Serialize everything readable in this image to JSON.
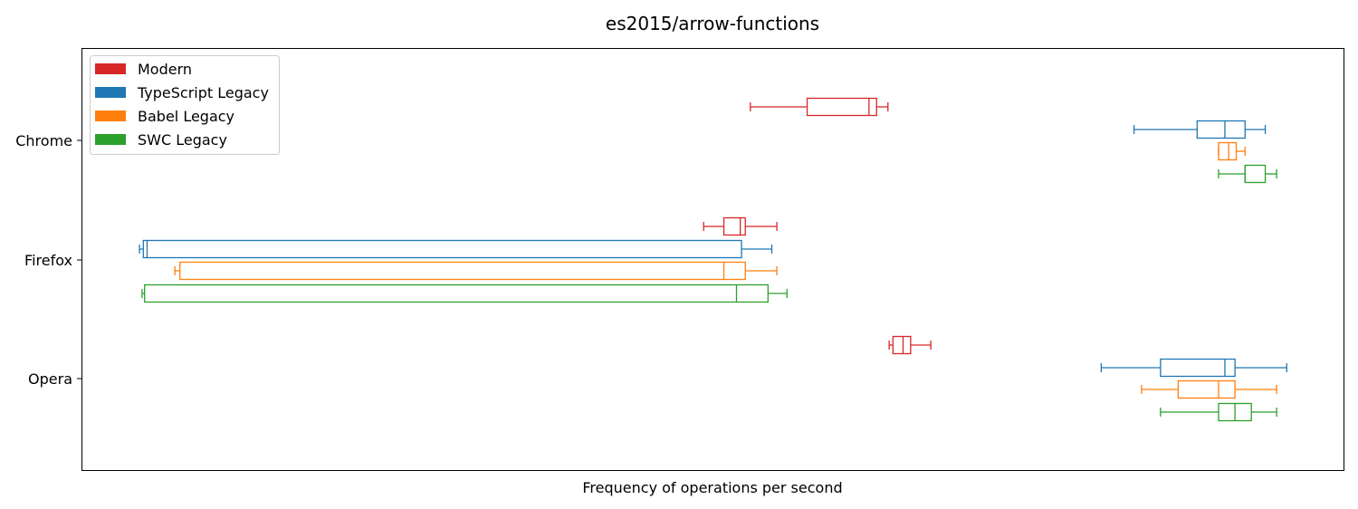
{
  "chart_data": {
    "type": "boxplot",
    "orientation": "horizontal",
    "title": "es2015/arrow-functions",
    "xlabel": "Frequency of operations per second",
    "ylabel": "",
    "x_ticks_visible": false,
    "xlim": [
      0,
      100
    ],
    "grid": false,
    "legend": {
      "placement": "top-left",
      "entries": [
        {
          "name": "Modern",
          "color": "#d62728"
        },
        {
          "name": "TypeScript Legacy",
          "color": "#1f77b4"
        },
        {
          "name": "Babel Legacy",
          "color": "#ff7f0e"
        },
        {
          "name": "SWC Legacy",
          "color": "#2ca02c"
        }
      ]
    },
    "categories": [
      "Chrome",
      "Firefox",
      "Opera"
    ],
    "series": [
      {
        "name": "Modern",
        "color": "#d62728",
        "boxes": [
          {
            "whisker_low": 53.0,
            "q1": 57.5,
            "median": 62.4,
            "q3": 63.0,
            "whisker_high": 63.9
          },
          {
            "whisker_low": 49.3,
            "q1": 50.9,
            "median": 52.2,
            "q3": 52.6,
            "whisker_high": 55.1
          },
          {
            "whisker_low": 64.0,
            "q1": 64.3,
            "median": 65.1,
            "q3": 65.7,
            "whisker_high": 67.3
          }
        ]
      },
      {
        "name": "TypeScript Legacy",
        "color": "#1f77b4",
        "boxes": [
          {
            "whisker_low": 83.4,
            "q1": 88.4,
            "median": 90.6,
            "q3": 92.2,
            "whisker_high": 93.8
          },
          {
            "whisker_low": 4.6,
            "q1": 4.9,
            "median": 5.2,
            "q3": 52.3,
            "whisker_high": 54.7
          },
          {
            "whisker_low": 80.8,
            "q1": 85.5,
            "median": 90.6,
            "q3": 91.4,
            "whisker_high": 95.5
          }
        ]
      },
      {
        "name": "Babel Legacy",
        "color": "#ff7f0e",
        "boxes": [
          {
            "whisker_low": 90.1,
            "q1": 90.1,
            "median": 90.9,
            "q3": 91.5,
            "whisker_high": 92.2
          },
          {
            "whisker_low": 7.4,
            "q1": 7.8,
            "median": 50.9,
            "q3": 52.6,
            "whisker_high": 55.1
          },
          {
            "whisker_low": 84.0,
            "q1": 86.9,
            "median": 90.1,
            "q3": 91.4,
            "whisker_high": 94.7
          }
        ]
      },
      {
        "name": "SWC Legacy",
        "color": "#2ca02c",
        "boxes": [
          {
            "whisker_low": 90.1,
            "q1": 92.2,
            "median": 92.2,
            "q3": 93.8,
            "whisker_high": 94.7
          },
          {
            "whisker_low": 4.8,
            "q1": 5.0,
            "median": 51.9,
            "q3": 54.4,
            "whisker_high": 55.9
          },
          {
            "whisker_low": 85.5,
            "q1": 90.1,
            "median": 91.4,
            "q3": 92.7,
            "whisker_high": 94.7
          }
        ]
      }
    ]
  }
}
